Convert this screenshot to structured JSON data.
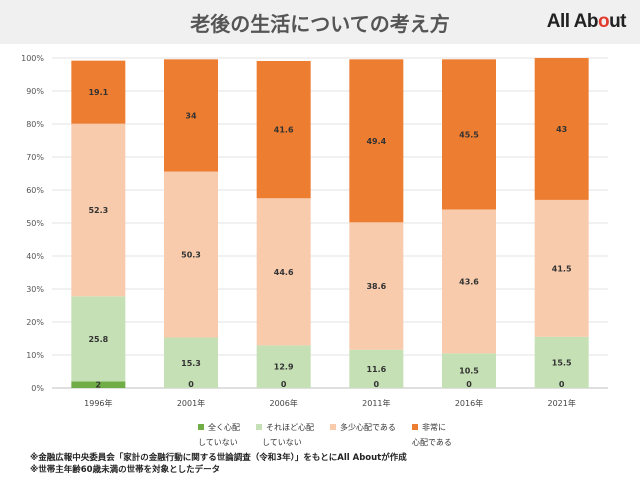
{
  "header": {
    "title": "老後の生活についての考え方",
    "logo_main": "All Ab",
    "logo_accent": "o",
    "logo_tail": "ut"
  },
  "chart_data": {
    "type": "bar",
    "stacked": true,
    "categories": [
      "1996年",
      "2001年",
      "2006年",
      "2011年",
      "2016年",
      "2021年"
    ],
    "series": [
      {
        "name": "全く心配していない",
        "color": "#70ad47",
        "values": [
          2,
          0,
          0,
          0,
          0,
          0
        ]
      },
      {
        "name": "それほど心配していない",
        "color": "#c5e0b4",
        "values": [
          25.8,
          15.3,
          12.9,
          11.6,
          10.5,
          15.5
        ]
      },
      {
        "name": "多少心配である",
        "color": "#f8cbad",
        "values": [
          52.3,
          50.3,
          44.6,
          38.6,
          43.6,
          41.5
        ]
      },
      {
        "name": "非常に心配である",
        "color": "#ed7d31",
        "values": [
          19.1,
          34,
          41.6,
          49.4,
          45.5,
          43
        ]
      }
    ],
    "y_ticks": [
      "0%",
      "10%",
      "20%",
      "30%",
      "40%",
      "50%",
      "60%",
      "70%",
      "80%",
      "90%",
      "100%"
    ],
    "ylim": [
      0,
      100
    ],
    "grid": true,
    "legend_position": "bottom"
  },
  "legend": [
    {
      "line1": "全く心配",
      "line2": "していない",
      "color": "#70ad47"
    },
    {
      "line1": "それほど心配",
      "line2": "していない",
      "color": "#c5e0b4"
    },
    {
      "line1": "多少心配である",
      "line2": "",
      "color": "#f8cbad"
    },
    {
      "line1": "非常に",
      "line2": "心配である",
      "color": "#ed7d31"
    }
  ],
  "footnotes": [
    "※金融広報中央委員会「家計の金融行動に関する世論調査（令和3年）」をもとにAll Aboutが作成",
    "※世帯主年齢60歳未満の世帯を対象としたデータ"
  ]
}
